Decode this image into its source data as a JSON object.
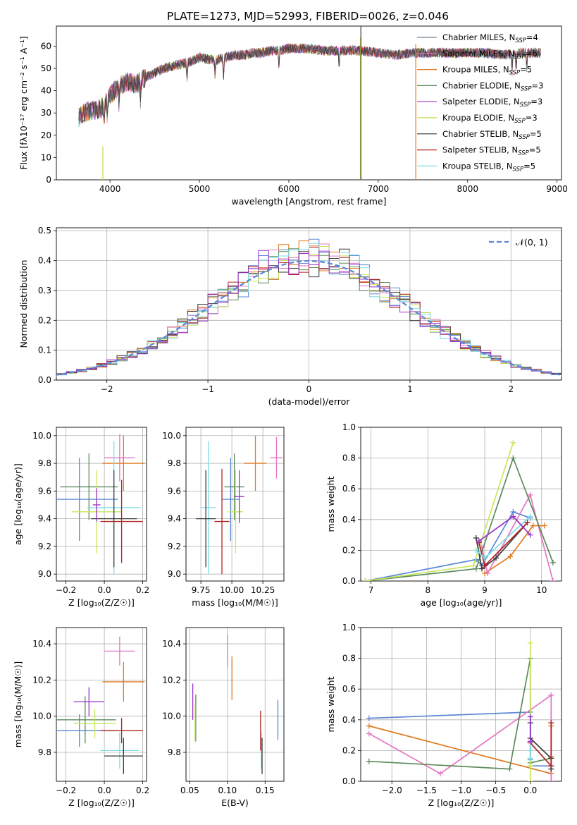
{
  "figure": {
    "title": "PLATE=1273, MJD=52993, FIBERID=0026, z=0.046"
  },
  "colors": {
    "run_colors": [
      "#708090",
      "#e377c2",
      "#e07a1f",
      "#5b8a5b",
      "#9932cc",
      "#c8d84a",
      "#3a3a3a",
      "#b22222",
      "#7fdbe6"
    ],
    "model_colors": {
      "blue": "#5b87d6",
      "orange": "#e07a1f",
      "pink": "#e377c2",
      "green": "#5b8a5b",
      "yellow": "#c8e65a",
      "dark": "#3a3a3a",
      "red": "#b22222",
      "cyan": "#7fdbe6",
      "purple": "#9932cc"
    },
    "gauss": "#5b87d6",
    "grid": "#b0b0b0"
  },
  "chart_data": [
    {
      "id": "spectrum",
      "type": "line",
      "xlabel": "wavelength [Angstrom, rest frame]",
      "ylabel": "Flux [f",
      "ylabel_full": "Flux [fλ10⁻¹⁷ erg cm⁻² s⁻¹ A⁻¹]",
      "xlim": [
        3400,
        9050
      ],
      "ylim": [
        0,
        69
      ],
      "xticks": [
        "4000",
        "5000",
        "6000",
        "7000",
        "8000",
        "9000"
      ],
      "yticks": [
        "0",
        "10",
        "20",
        "30",
        "40",
        "50",
        "60"
      ],
      "legend_position": "top-right",
      "legend": [
        "Chabrier MILES, N_SSP=4",
        "Salpeter MILES, N_SSP=6",
        "Kroupa MILES, N_SSP=5",
        "Chabrier ELODIE, N_SSP=3",
        "Salpeter ELODIE, N_SSP=3",
        "Kroupa ELODIE, N_SSP=3",
        "Chabrier STELIB, N_SSP=5",
        "Salpeter STELIB, N_SSP=5",
        "Kroupa STELIB, N_SSP=5"
      ],
      "legend_display": [
        "Chabrier MILES, NSSP=4",
        "Salpeter MILES, NSSP=6",
        "Kroupa MILES, NSSP=5",
        "Chabrier ELODIE, NSSP=3",
        "Salpeter ELODIE, NSSP=3",
        "Kroupa ELODIE, NSSP=3",
        "Chabrier STELIB, NSSP=5",
        "Salpeter STELIB, NSSP=5",
        "Kroupa STELIB, NSSP=5"
      ],
      "continuum": {
        "x": [
          3650,
          3700,
          3800,
          3900,
          4000,
          4100,
          4200,
          4300,
          4400,
          4500,
          4600,
          4700,
          4800,
          4900,
          5000,
          5100,
          5200,
          5300,
          5400,
          5500,
          5600,
          5700,
          5800,
          5900,
          6000,
          6200,
          6400,
          6600,
          6800,
          7000,
          7200,
          7400,
          7600,
          7800,
          8000,
          8200,
          8400,
          8600,
          8800
        ],
        "y": [
          28,
          30,
          31,
          32,
          38,
          42,
          44,
          43,
          46,
          48,
          50,
          51,
          52,
          53,
          55,
          54,
          54,
          55,
          56,
          56,
          57,
          57,
          58,
          58,
          59,
          59,
          58,
          58,
          58,
          57,
          56,
          57,
          57,
          57,
          57,
          57,
          56,
          57,
          57
        ]
      },
      "lines": [
        {
          "x": 3920,
          "ymin": 0,
          "ymax": 15,
          "color_index": 5
        },
        {
          "x": 6800,
          "ymin": 0,
          "ymax": 64,
          "color_index": 5
        },
        {
          "x": 6806,
          "ymin": 0,
          "ymax": 69,
          "color_index": 6
        },
        {
          "x": 7420,
          "ymin": 0,
          "ymax": 61,
          "color_index": 2
        }
      ]
    },
    {
      "id": "residuals",
      "type": "histogram",
      "xlabel": "(data-model)/error",
      "ylabel": "Normed distribution",
      "xlim": [
        -2.5,
        2.5
      ],
      "ylim": [
        0,
        0.51
      ],
      "xticks": [
        -2,
        -1,
        0,
        1,
        2
      ],
      "xticklabels": [
        "−2",
        "−1",
        "0",
        "1",
        "2"
      ],
      "yticks": [
        0.0,
        0.1,
        0.2,
        0.3,
        0.4,
        0.5
      ],
      "yticklabels": [
        "0.0",
        "0.1",
        "0.2",
        "0.3",
        "0.4",
        "0.5"
      ],
      "legend_position": "top-right",
      "gauss_label": "𝒩(0, 1)",
      "bin_width": 0.1
    },
    {
      "id": "age-vs-Z",
      "type": "scatter",
      "xlabel": "Z [log₁₀(Z/Z☉)]",
      "ylabel": "age  [log₁₀(age/yr)]",
      "xlim": [
        -0.25,
        0.22
      ],
      "ylim": [
        8.95,
        10.06
      ],
      "xticks": [
        -0.2,
        0.0,
        0.2
      ],
      "xticklabels": [
        "−0.2",
        "0.0",
        "0.2"
      ],
      "yticks": [
        9.0,
        9.2,
        9.4,
        9.6,
        9.8,
        10.0
      ],
      "yticklabels": [
        "9.0",
        "9.2",
        "9.4",
        "9.6",
        "9.8",
        "10.0"
      ],
      "points": [
        {
          "x": 0.08,
          "y": 9.84,
          "xerr": 0.08,
          "yerr": 0.17,
          "color": "pink"
        },
        {
          "x": 0.1,
          "y": 9.8,
          "xerr": 0.11,
          "yerr": 0.2,
          "color": "orange"
        },
        {
          "x": -0.13,
          "y": 9.54,
          "xerr": 0.2,
          "yerr": 0.3,
          "color": "blue"
        },
        {
          "x": -0.08,
          "y": 9.63,
          "xerr": 0.15,
          "yerr": 0.24,
          "color": "green"
        },
        {
          "x": -0.04,
          "y": 9.45,
          "xerr": 0.13,
          "yerr": 0.3,
          "color": "yellow"
        },
        {
          "x": 0.05,
          "y": 9.48,
          "xerr": 0.14,
          "yerr": 0.48,
          "color": "cyan"
        },
        {
          "x": 0.05,
          "y": 9.4,
          "xerr": 0.12,
          "yerr": 0.35,
          "color": "dark"
        },
        {
          "x": 0.09,
          "y": 9.38,
          "xerr": 0.11,
          "yerr": 0.3,
          "color": "red"
        },
        {
          "x": -0.04,
          "y": 9.5,
          "xerr": 0.02,
          "yerr": 0.12,
          "color": "purple"
        }
      ]
    },
    {
      "id": "age-vs-mass",
      "type": "scatter",
      "xlabel": "mass [log₁₀(M/M☉)]",
      "ylabel": "",
      "xlim": [
        9.63,
        10.42
      ],
      "ylim": [
        8.95,
        10.06
      ],
      "xticks": [
        9.75,
        10.0,
        10.25
      ],
      "xticklabels": [
        "9.75",
        "10.00",
        "10.25"
      ],
      "yticks": [
        9.0,
        9.2,
        9.4,
        9.6,
        9.8,
        10.0
      ],
      "yticklabels": [
        "9.0",
        "9.2",
        "9.4",
        "9.6",
        "9.8",
        "10.0"
      ],
      "points": [
        {
          "x": 10.36,
          "y": 9.84,
          "xerr": 0.05,
          "yerr": 0.15,
          "color": "pink"
        },
        {
          "x": 10.19,
          "y": 9.8,
          "xerr": 0.09,
          "yerr": 0.2,
          "color": "orange"
        },
        {
          "x": 9.99,
          "y": 9.54,
          "xerr": 0.07,
          "yerr": 0.3,
          "color": "blue"
        },
        {
          "x": 10.02,
          "y": 9.63,
          "xerr": 0.08,
          "yerr": 0.24,
          "color": "green"
        },
        {
          "x": 10.03,
          "y": 9.45,
          "xerr": 0.06,
          "yerr": 0.3,
          "color": "yellow"
        },
        {
          "x": 9.81,
          "y": 9.48,
          "xerr": 0.06,
          "yerr": 0.48,
          "color": "cyan"
        },
        {
          "x": 9.79,
          "y": 9.4,
          "xerr": 0.08,
          "yerr": 0.35,
          "color": "dark"
        },
        {
          "x": 9.92,
          "y": 9.38,
          "xerr": 0.06,
          "yerr": 0.38,
          "color": "red"
        },
        {
          "x": 10.06,
          "y": 9.56,
          "xerr": 0.04,
          "yerr": 0.19,
          "color": "purple"
        }
      ]
    },
    {
      "id": "massweight-vs-age",
      "type": "line",
      "xlabel": "age  [log₁₀(age/yr)]",
      "ylabel": "mass weight",
      "xlim": [
        6.82,
        10.35
      ],
      "ylim": [
        0,
        1.0
      ],
      "xticks": [
        7,
        8,
        9,
        10
      ],
      "xticklabels": [
        "7",
        "8",
        "9",
        "10"
      ],
      "yticks": [
        0.0,
        0.2,
        0.4,
        0.6,
        0.8,
        1.0
      ],
      "yticklabels": [
        "0.0",
        "0.2",
        "0.4",
        "0.6",
        "0.8",
        "1.0"
      ],
      "series": [
        {
          "color": "blue",
          "x": [
            6.9,
            8.85,
            8.95,
            9.5,
            9.8
          ],
          "y": [
            0.0,
            0.14,
            0.1,
            0.45,
            0.41
          ]
        },
        {
          "color": "orange",
          "x": [
            9.0,
            9.45,
            9.85,
            10.05
          ],
          "y": [
            0.05,
            0.16,
            0.36,
            0.36
          ]
        },
        {
          "color": "pink",
          "x": [
            8.95,
            9.05,
            9.8,
            10.2
          ],
          "y": [
            0.22,
            0.05,
            0.56,
            0.0
          ]
        },
        {
          "color": "green",
          "x": [
            6.9,
            8.85,
            9.5,
            10.2
          ],
          "y": [
            0.0,
            0.08,
            0.8,
            0.12
          ]
        },
        {
          "color": "yellow",
          "x": [
            6.9,
            8.8,
            9.5
          ],
          "y": [
            0.0,
            0.1,
            0.9
          ]
        },
        {
          "color": "dark",
          "x": [
            8.85,
            8.95,
            9.2,
            9.75
          ],
          "y": [
            0.28,
            0.08,
            0.15,
            0.38
          ]
        },
        {
          "color": "red",
          "x": [
            8.9,
            9.0,
            9.75
          ],
          "y": [
            0.25,
            0.1,
            0.38
          ]
        },
        {
          "color": "cyan",
          "x": [
            8.85,
            9.0,
            9.8
          ],
          "y": [
            0.2,
            0.15,
            0.42
          ]
        },
        {
          "color": "purple",
          "x": [
            8.9,
            9.5,
            9.8
          ],
          "y": [
            0.26,
            0.42,
            0.3
          ]
        }
      ]
    },
    {
      "id": "mass-vs-Z",
      "type": "scatter",
      "xlabel": "Z [log₁₀(Z/Z☉)]",
      "ylabel": "mass [log₁₀(M/M☉)]",
      "xlim": [
        -0.25,
        0.22
      ],
      "ylim": [
        9.64,
        10.49
      ],
      "xticks": [
        -0.2,
        0.0,
        0.2
      ],
      "xticklabels": [
        "−0.2",
        "0.0",
        "0.2"
      ],
      "yticks": [
        9.8,
        10.0,
        10.2,
        10.4
      ],
      "yticklabels": [
        "9.8",
        "10.0",
        "10.2",
        "10.4"
      ],
      "points": [
        {
          "x": 0.08,
          "y": 10.36,
          "xerr": 0.08,
          "yerr": 0.08,
          "color": "pink"
        },
        {
          "x": 0.1,
          "y": 10.19,
          "xerr": 0.11,
          "yerr": 0.11,
          "color": "orange"
        },
        {
          "x": -0.13,
          "y": 9.92,
          "xerr": 0.18,
          "yerr": 0.09,
          "color": "blue"
        },
        {
          "x": -0.1,
          "y": 9.98,
          "xerr": 0.16,
          "yerr": 0.13,
          "color": "green"
        },
        {
          "x": -0.05,
          "y": 9.96,
          "xerr": 0.11,
          "yerr": 0.08,
          "color": "yellow"
        },
        {
          "x": 0.08,
          "y": 9.81,
          "xerr": 0.1,
          "yerr": 0.1,
          "color": "cyan"
        },
        {
          "x": 0.1,
          "y": 9.78,
          "xerr": 0.1,
          "yerr": 0.1,
          "color": "dark"
        },
        {
          "x": 0.09,
          "y": 9.92,
          "xerr": 0.11,
          "yerr": 0.07,
          "color": "red"
        },
        {
          "x": -0.08,
          "y": 10.08,
          "xerr": 0.08,
          "yerr": 0.08,
          "color": "purple"
        }
      ]
    },
    {
      "id": "mass-vs-ebv",
      "type": "scatter",
      "xlabel": "E(B-V)",
      "ylabel": "",
      "xlim": [
        0.045,
        0.175
      ],
      "ylim": [
        9.64,
        10.49
      ],
      "xticks": [
        0.05,
        0.1,
        0.15
      ],
      "xticklabels": [
        "0.05",
        "0.10",
        "0.15"
      ],
      "yticks": [
        9.8,
        10.0,
        10.2,
        10.4
      ],
      "yticklabels": [
        "9.8",
        "10.0",
        "10.2",
        "10.4"
      ],
      "points": [
        {
          "x": 0.1,
          "y": 10.36,
          "xerr": 0,
          "yerr": 0.09,
          "color": "pink"
        },
        {
          "x": 0.106,
          "y": 10.21,
          "xerr": 0,
          "yerr": 0.12,
          "color": "orange"
        },
        {
          "x": 0.167,
          "y": 9.98,
          "xerr": 0,
          "yerr": 0.11,
          "color": "blue"
        },
        {
          "x": 0.058,
          "y": 9.99,
          "xerr": 0,
          "yerr": 0.13,
          "color": "green"
        },
        {
          "x": 0.057,
          "y": 9.96,
          "xerr": 0,
          "yerr": 0.1,
          "color": "yellow"
        },
        {
          "x": 0.145,
          "y": 9.81,
          "xerr": 0,
          "yerr": 0.1,
          "color": "cyan"
        },
        {
          "x": 0.146,
          "y": 9.78,
          "xerr": 0,
          "yerr": 0.1,
          "color": "dark"
        },
        {
          "x": 0.144,
          "y": 9.92,
          "xerr": 0,
          "yerr": 0.11,
          "color": "red"
        },
        {
          "x": 0.054,
          "y": 10.08,
          "xerr": 0,
          "yerr": 0.1,
          "color": "purple"
        }
      ]
    },
    {
      "id": "massweight-vs-Z",
      "type": "line",
      "xlabel": "Z [log₁₀(Z/Z☉)]",
      "ylabel": "mass weight",
      "xlim": [
        -2.45,
        0.45
      ],
      "ylim": [
        0,
        1.0
      ],
      "xticks": [
        -2.0,
        -1.5,
        -1.0,
        -0.5,
        0.0
      ],
      "xticklabels": [
        "−2.0",
        "−1.5",
        "−1.0",
        "−0.5",
        "0.0"
      ],
      "yticks": [
        0.0,
        0.2,
        0.4,
        0.6,
        0.8,
        1.0
      ],
      "yticklabels": [
        "0.0",
        "0.2",
        "0.4",
        "0.6",
        "0.8",
        "1.0"
      ],
      "series": [
        {
          "color": "blue",
          "x": [
            -2.33,
            0.0,
            0.0,
            0.0,
            0.3,
            0.3
          ],
          "y": [
            0.41,
            0.45,
            0.14,
            0.1,
            0.1,
            0.0
          ]
        },
        {
          "color": "orange",
          "x": [
            -2.33,
            0.3,
            0.3,
            0.3
          ],
          "y": [
            0.36,
            0.05,
            0.16,
            0.36
          ]
        },
        {
          "color": "pink",
          "x": [
            -2.33,
            -1.3,
            0.3,
            0.3
          ],
          "y": [
            0.31,
            0.05,
            0.56,
            0.0
          ]
        },
        {
          "color": "green",
          "x": [
            -2.33,
            -0.3,
            0.0,
            0.0,
            0.3
          ],
          "y": [
            0.13,
            0.08,
            0.8,
            0.12,
            0.15
          ]
        },
        {
          "color": "yellow",
          "x": [
            0.0,
            0.0,
            0.0
          ],
          "y": [
            0.0,
            0.1,
            0.9
          ]
        },
        {
          "color": "dark",
          "x": [
            0.0,
            0.0,
            0.3,
            0.3,
            0.3
          ],
          "y": [
            0.38,
            0.28,
            0.15,
            0.08,
            0.1
          ]
        },
        {
          "color": "red",
          "x": [
            0.0,
            0.3,
            0.3
          ],
          "y": [
            0.25,
            0.1,
            0.38
          ]
        },
        {
          "color": "cyan",
          "x": [
            0.0,
            0.0,
            0.0
          ],
          "y": [
            0.42,
            0.2,
            0.15
          ]
        },
        {
          "color": "purple",
          "x": [
            0.0,
            0.0
          ],
          "y": [
            0.26,
            0.42
          ]
        }
      ]
    }
  ]
}
